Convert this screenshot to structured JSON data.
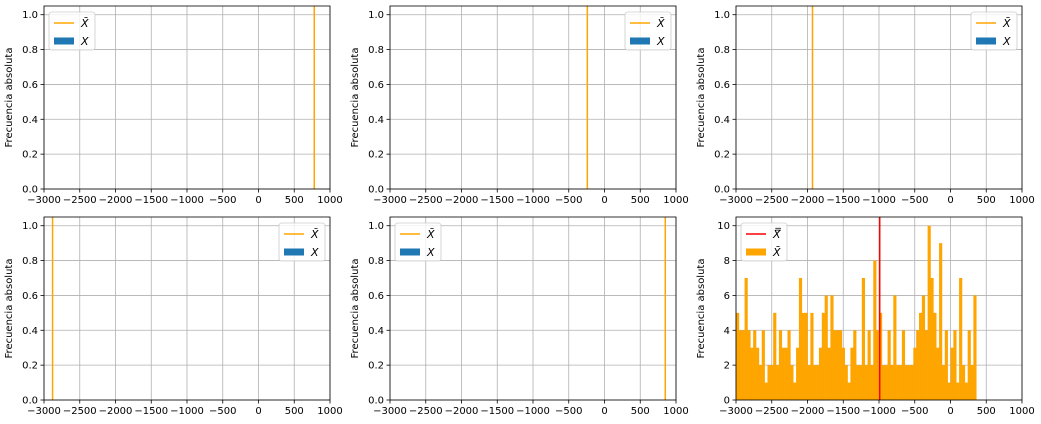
{
  "chart_data": [
    {
      "type": "histogram",
      "ylabel": "Frecuencia absoluta",
      "xlim": [
        -3000,
        1000
      ],
      "ylim": [
        0,
        1.05
      ],
      "xticks": [
        "−3000",
        "−2500",
        "−2000",
        "−1500",
        "−1000",
        "−500",
        "0",
        "500",
        "1000"
      ],
      "yticks": [
        "0.0",
        "0.2",
        "0.4",
        "0.6",
        "0.8",
        "1.0"
      ],
      "grid": true,
      "legend_position": "top-left",
      "legend": [
        {
          "label": "X̄",
          "kind": "line",
          "color": "#ffa500"
        },
        {
          "label": "X",
          "kind": "patch",
          "color": "#1f77b4"
        }
      ],
      "vline": {
        "x": 780,
        "color": "#ffa500"
      }
    },
    {
      "type": "histogram",
      "ylabel": "Frecuencia absoluta",
      "xlim": [
        -3000,
        1000
      ],
      "ylim": [
        0,
        1.05
      ],
      "xticks": [
        "−3000",
        "−2500",
        "−2000",
        "−1500",
        "−1000",
        "−500",
        "0",
        "500",
        "1000"
      ],
      "yticks": [
        "0.0",
        "0.2",
        "0.4",
        "0.6",
        "0.8",
        "1.0"
      ],
      "grid": true,
      "legend_position": "top-right",
      "legend": [
        {
          "label": "X̄",
          "kind": "line",
          "color": "#ffa500"
        },
        {
          "label": "X",
          "kind": "patch",
          "color": "#1f77b4"
        }
      ],
      "vline": {
        "x": -240,
        "color": "#ffa500"
      }
    },
    {
      "type": "histogram",
      "ylabel": "Frecuencia absoluta",
      "xlim": [
        -3000,
        1000
      ],
      "ylim": [
        0,
        1.05
      ],
      "xticks": [
        "−3000",
        "−2500",
        "−2000",
        "−1500",
        "−1000",
        "−500",
        "0",
        "500",
        "1000"
      ],
      "yticks": [
        "0.0",
        "0.2",
        "0.4",
        "0.6",
        "0.8",
        "1.0"
      ],
      "grid": true,
      "legend_position": "top-right",
      "legend": [
        {
          "label": "X̄",
          "kind": "line",
          "color": "#ffa500"
        },
        {
          "label": "X",
          "kind": "patch",
          "color": "#1f77b4"
        }
      ],
      "vline": {
        "x": -1930,
        "color": "#ffa500"
      }
    },
    {
      "type": "histogram",
      "ylabel": "Frecuencia absoluta",
      "xlim": [
        -3000,
        1000
      ],
      "ylim": [
        0,
        1.05
      ],
      "xticks": [
        "−3000",
        "−2500",
        "−2000",
        "−1500",
        "−1000",
        "−500",
        "0",
        "500",
        "1000"
      ],
      "yticks": [
        "0.0",
        "0.2",
        "0.4",
        "0.6",
        "0.8",
        "1.0"
      ],
      "grid": true,
      "legend_position": "top-right",
      "legend": [
        {
          "label": "X̄",
          "kind": "line",
          "color": "#ffa500"
        },
        {
          "label": "X",
          "kind": "patch",
          "color": "#1f77b4"
        }
      ],
      "vline": {
        "x": -2880,
        "color": "#ffa500"
      }
    },
    {
      "type": "histogram",
      "ylabel": "Frecuencia absoluta",
      "xlim": [
        -3000,
        1000
      ],
      "ylim": [
        0,
        1.05
      ],
      "xticks": [
        "−3000",
        "−2500",
        "−2000",
        "−1500",
        "−1000",
        "−500",
        "0",
        "500",
        "1000"
      ],
      "yticks": [
        "0.0",
        "0.2",
        "0.4",
        "0.6",
        "0.8",
        "1.0"
      ],
      "grid": true,
      "legend_position": "top-left",
      "legend": [
        {
          "label": "X̄",
          "kind": "line",
          "color": "#ffa500"
        },
        {
          "label": "X",
          "kind": "patch",
          "color": "#1f77b4"
        }
      ],
      "vline": {
        "x": 850,
        "color": "#ffa500"
      }
    },
    {
      "type": "histogram",
      "ylabel": "Frecuencia absoluta",
      "xlim": [
        -3000,
        1000
      ],
      "ylim": [
        0,
        10.5
      ],
      "xticks": [
        "−3000",
        "−2500",
        "−2000",
        "−1500",
        "−1000",
        "−500",
        "0",
        "500",
        "1000"
      ],
      "yticks": [
        "0",
        "2",
        "4",
        "6",
        "8",
        "10"
      ],
      "grid": true,
      "legend_position": "top-left",
      "legend": [
        {
          "label": "X̿",
          "kind": "line",
          "color": "#ff0000"
        },
        {
          "label": "X̄",
          "kind": "patch",
          "color": "#ffa500"
        }
      ],
      "vline": {
        "x": -990,
        "color": "#ff0000"
      },
      "bars": {
        "color": "#ffa500",
        "bin_start": -3000,
        "bin_width": 40,
        "counts": [
          5,
          4,
          4,
          7,
          4,
          3,
          4,
          3,
          2,
          4,
          1,
          2,
          2,
          5,
          2,
          4,
          3,
          3,
          4,
          2,
          1,
          3,
          7,
          5,
          5,
          2,
          5,
          2,
          2,
          3,
          5,
          6,
          3,
          6,
          4,
          4,
          4,
          3,
          2,
          1,
          3,
          4,
          2,
          2,
          7,
          2,
          4,
          2,
          8,
          4,
          5,
          2,
          2,
          4,
          2,
          6,
          2,
          2,
          4,
          2,
          2,
          2,
          3,
          4,
          5,
          6,
          4,
          10,
          7,
          5,
          3,
          9,
          2,
          4,
          1,
          3,
          4,
          1,
          7,
          2,
          1,
          4,
          2,
          6
        ]
      }
    }
  ]
}
